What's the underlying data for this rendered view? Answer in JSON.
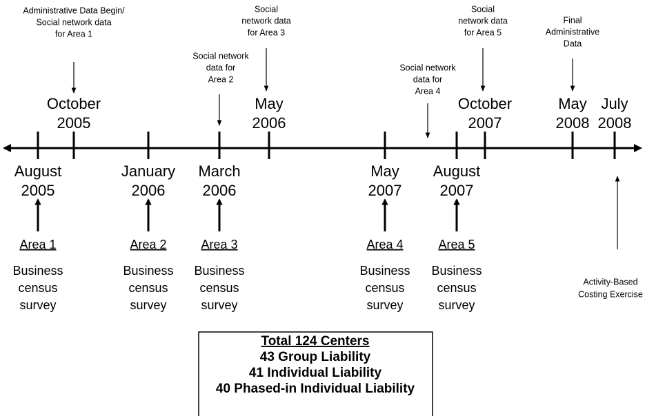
{
  "timeline": {
    "above_dates": [
      {
        "month": "October",
        "year": "2005"
      },
      {
        "month": "May",
        "year": "2006"
      },
      {
        "month": "October",
        "year": "2007"
      },
      {
        "month": "May",
        "year": "2008"
      },
      {
        "month": "July",
        "year": "2008"
      }
    ],
    "below_dates": [
      {
        "month": "August",
        "year": "2005"
      },
      {
        "month": "January",
        "year": "2006"
      },
      {
        "month": "March",
        "year": "2006"
      },
      {
        "month": "May",
        "year": "2007"
      },
      {
        "month": "August",
        "year": "2007"
      }
    ],
    "annotations": [
      {
        "lines": [
          "Administrative Data Begin/",
          "Social network data",
          "for Area 1"
        ]
      },
      {
        "lines": [
          "Social network",
          "data for",
          "Area 2"
        ]
      },
      {
        "lines": [
          "Social",
          "network data",
          "for Area 3"
        ]
      },
      {
        "lines": [
          "Social network",
          "data for",
          "Area 4"
        ]
      },
      {
        "lines": [
          "Social",
          "network data",
          "for Area 5"
        ]
      },
      {
        "lines": [
          "Final",
          "Administrative",
          "Data"
        ]
      }
    ],
    "bottom_note": {
      "lines": [
        "Activity-Based",
        "Costing Exercise"
      ]
    },
    "areas": [
      {
        "label": "Area 1",
        "lines": [
          "Business",
          "census",
          "survey"
        ]
      },
      {
        "label": "Area 2",
        "lines": [
          "Business",
          "census",
          "survey"
        ]
      },
      {
        "label": "Area 3",
        "lines": [
          "Business",
          "census",
          "survey"
        ]
      },
      {
        "label": "Area 4",
        "lines": [
          "Business",
          "census",
          "survey"
        ]
      },
      {
        "label": "Area 5",
        "lines": [
          "Business",
          "census",
          "survey"
        ]
      }
    ]
  },
  "summary_box": {
    "title": "Total 124 Centers",
    "lines": [
      "43 Group Liability",
      "41 Individual Liability",
      "40 Phased-in Individual Liability"
    ]
  }
}
